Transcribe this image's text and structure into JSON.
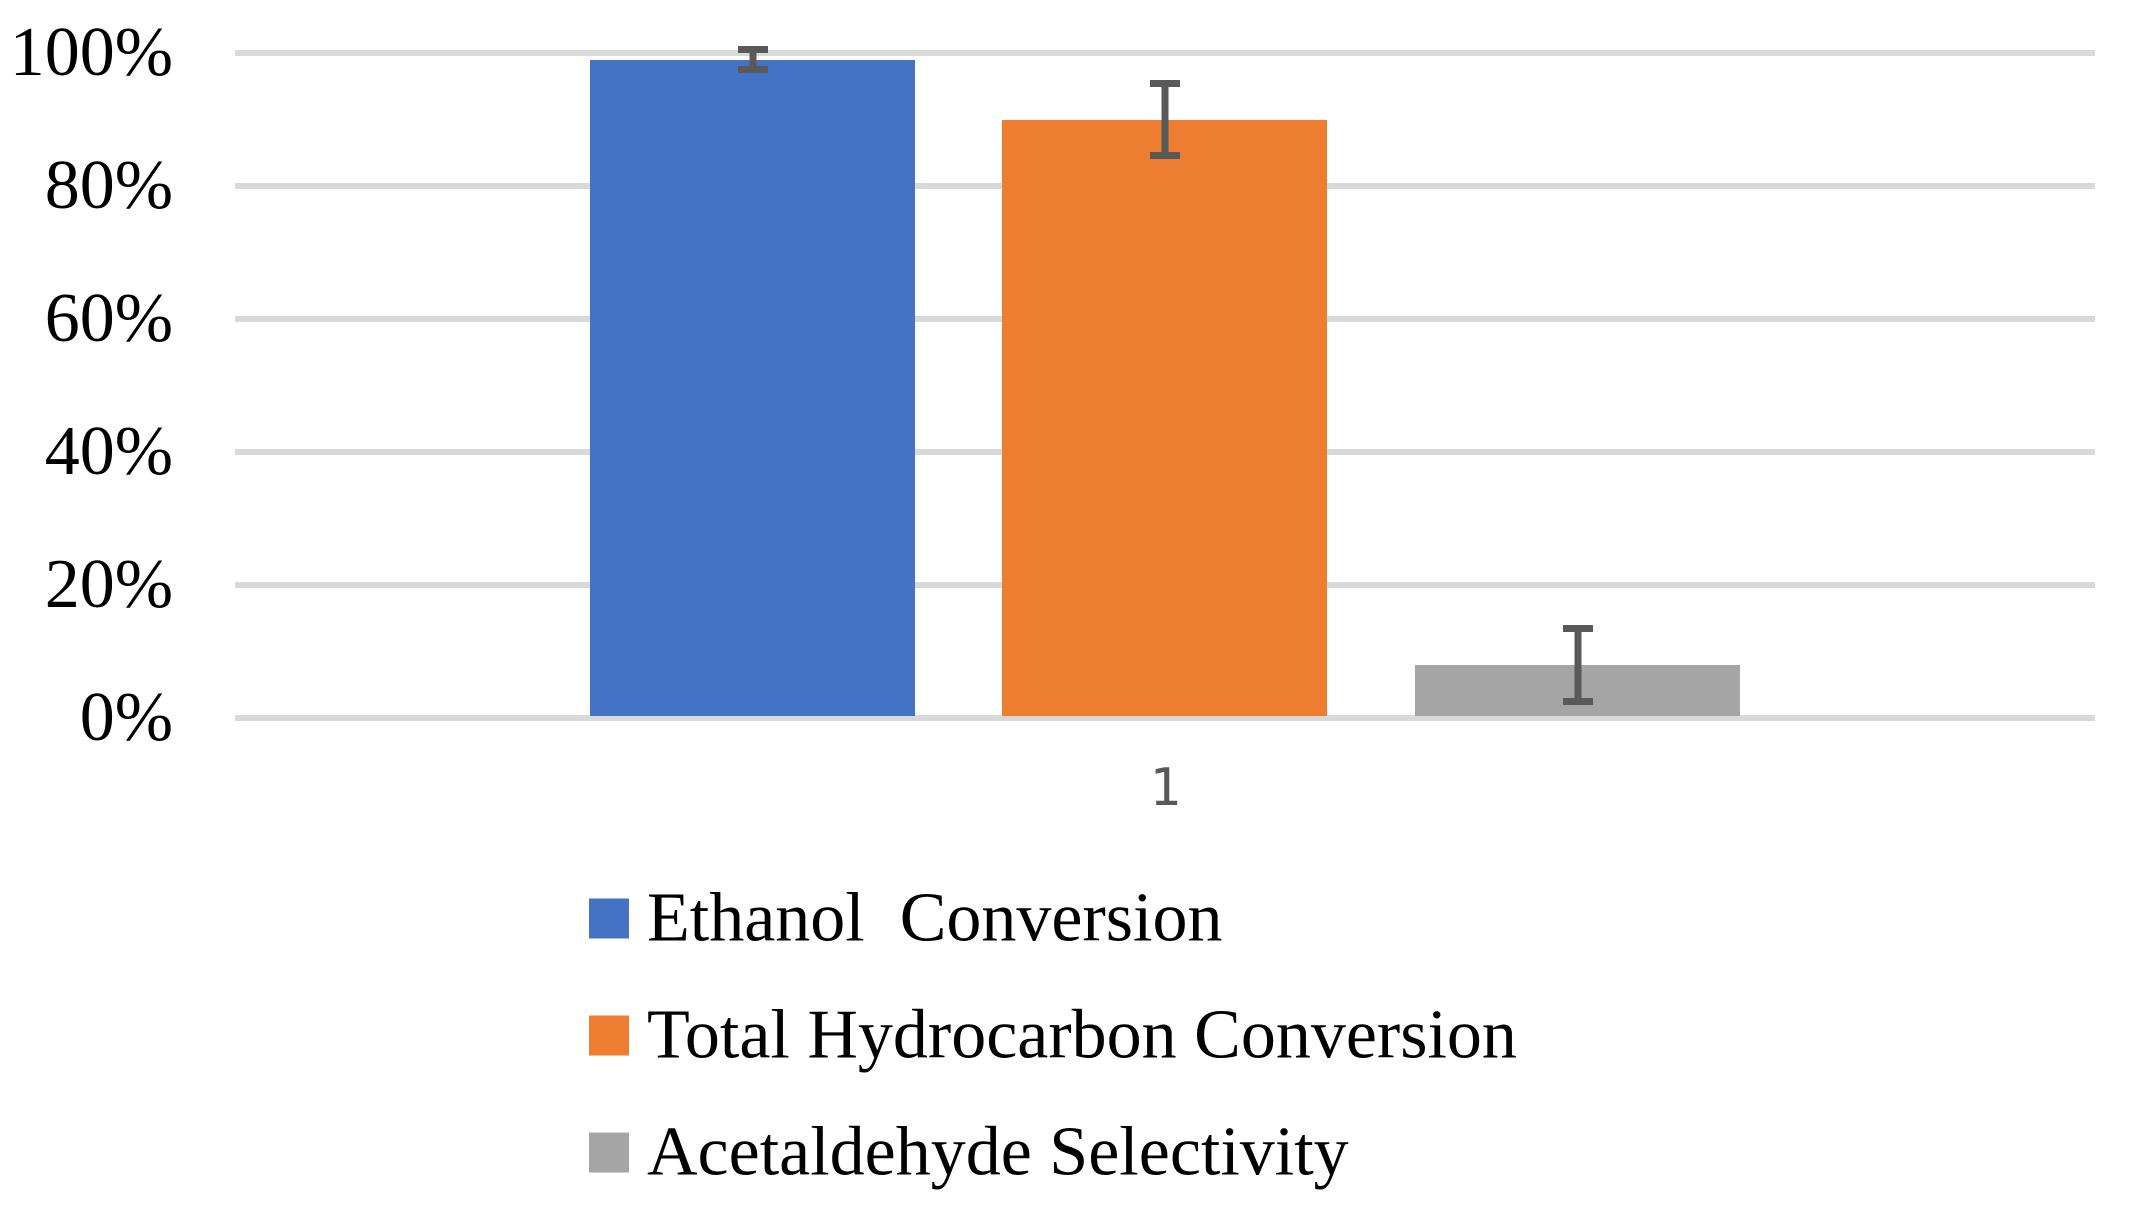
{
  "chart_data": {
    "type": "bar",
    "categories": [
      "1"
    ],
    "series": [
      {
        "name": "Ethanol  Conversion",
        "values": [
          99
        ],
        "error": [
          2
        ],
        "color": "#4472C4"
      },
      {
        "name": "Total Hydrocarbon Conversion",
        "values": [
          90
        ],
        "error": [
          6
        ],
        "color": "#ED7D31"
      },
      {
        "name": "Acetaldehyde Selectivity",
        "values": [
          8
        ],
        "error": [
          6
        ],
        "color": "#A5A5A5"
      }
    ],
    "title": "",
    "xlabel": "",
    "ylabel": "",
    "ylim": [
      0,
      100
    ],
    "ytick_step": 20,
    "ytick_labels": [
      "0%",
      "20%",
      "40%",
      "60%",
      "80%",
      "100%"
    ],
    "grid": true,
    "gridline_color": "#D9D9D9",
    "error_bar_color": "#595959",
    "x_tick_label_color": "#595959",
    "y_tick_label_color": "#000000",
    "legend_position": "bottom-left"
  }
}
